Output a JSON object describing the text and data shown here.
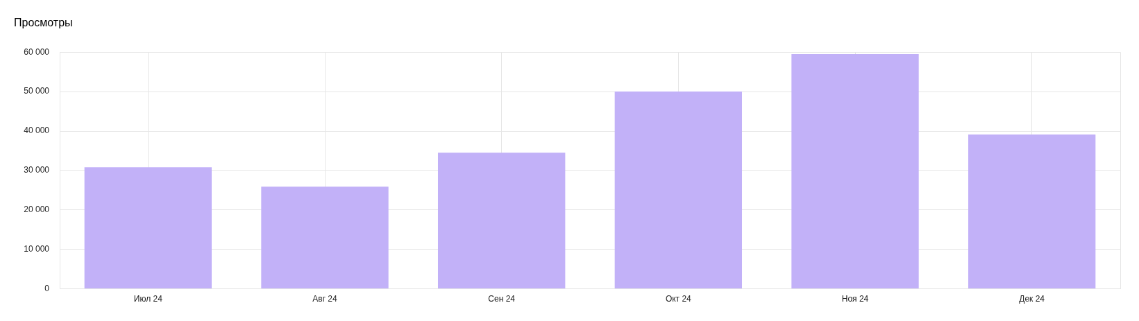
{
  "chart_data": {
    "type": "bar",
    "title": "Просмотры",
    "categories": [
      "Июл 24",
      "Авг 24",
      "Сен 24",
      "Окт 24",
      "Ноя 24",
      "Дек 24"
    ],
    "values": [
      30800,
      25900,
      34500,
      50000,
      59500,
      39100
    ],
    "color": "#c2b1f8",
    "ylim": [
      0,
      60000
    ],
    "yticks": [
      0,
      {
        "value": 10000,
        "label": "10 000"
      },
      {
        "value": 20000,
        "label": "20 000"
      },
      {
        "value": 30000,
        "label": "30 000"
      },
      {
        "value": 40000,
        "label": "40 000"
      },
      {
        "value": 50000,
        "label": "50 000"
      },
      {
        "value": 60000,
        "label": "60 000"
      }
    ],
    "grid": true
  }
}
